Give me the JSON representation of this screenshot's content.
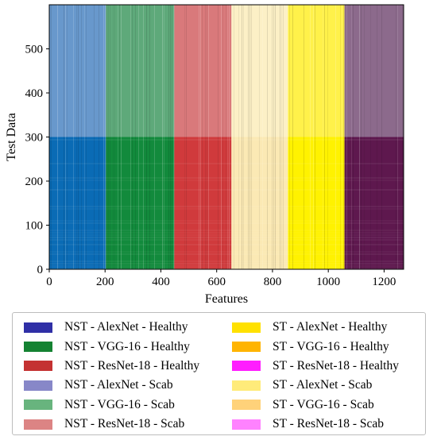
{
  "chart_data": {
    "type": "heatmap",
    "xlabel": "Features",
    "ylabel": "Test Data",
    "xlim": [
      0,
      1270
    ],
    "ylim": [
      0,
      600
    ],
    "xticks": [
      "0",
      "200",
      "400",
      "600",
      "800",
      "1000",
      "1200"
    ],
    "yticks": [
      "0",
      "100",
      "200",
      "300",
      "400",
      "500"
    ],
    "row_split": 300,
    "feature_blocks": [
      {
        "x_range": [
          0,
          203
        ],
        "model": "AlexNet",
        "scab_color": "#0a6bb5",
        "healthy_color": "#6898cc"
      },
      {
        "x_range": [
          203,
          448
        ],
        "model": "VGG-16",
        "scab_color": "#128a3c",
        "healthy_color": "#5ea97a"
      },
      {
        "x_range": [
          448,
          653
        ],
        "model": "ResNet-18",
        "scab_color": "#d03a3c",
        "healthy_color": "#d9797b"
      },
      {
        "x_range": [
          653,
          855
        ],
        "model": "AlexNet",
        "scab_color": "#fbe9b4",
        "healthy_color": "#fcf0c6"
      },
      {
        "x_range": [
          855,
          1058
        ],
        "model": "VGG-16",
        "scab_color": "#fff200",
        "healthy_color": "#fff14a"
      },
      {
        "x_range": [
          1058,
          1270
        ],
        "model": "ResNet-18",
        "scab_color": "#5e184e",
        "healthy_color": "#8c6a8c"
      }
    ],
    "legend": {
      "placement": "below",
      "entries": [
        {
          "label": "NST - AlexNet - Healthy",
          "color": "#2f2fa6"
        },
        {
          "label": "NST - VGG-16 - Healthy",
          "color": "#148232"
        },
        {
          "label": "NST - ResNet-18 - Healthy",
          "color": "#c43232"
        },
        {
          "label": "NST - AlexNet - Scab",
          "color": "#8787c8"
        },
        {
          "label": "NST - VGG-16 - Scab",
          "color": "#68b47e"
        },
        {
          "label": "NST - ResNet-18 - Scab",
          "color": "#dc8484"
        },
        {
          "label": "ST - AlexNet - Healthy",
          "color": "#ffe100"
        },
        {
          "label": "ST - VGG-16 - Healthy",
          "color": "#ffb400"
        },
        {
          "label": "ST - ResNet-18 - Healthy",
          "color": "#ff1eff"
        },
        {
          "label": "ST - AlexNet - Scab",
          "color": "#ffeb7a"
        },
        {
          "label": "ST - VGG-16 - Scab",
          "color": "#ffd27a"
        },
        {
          "label": "ST - ResNet-18 - Scab",
          "color": "#ff82ff"
        }
      ]
    }
  }
}
